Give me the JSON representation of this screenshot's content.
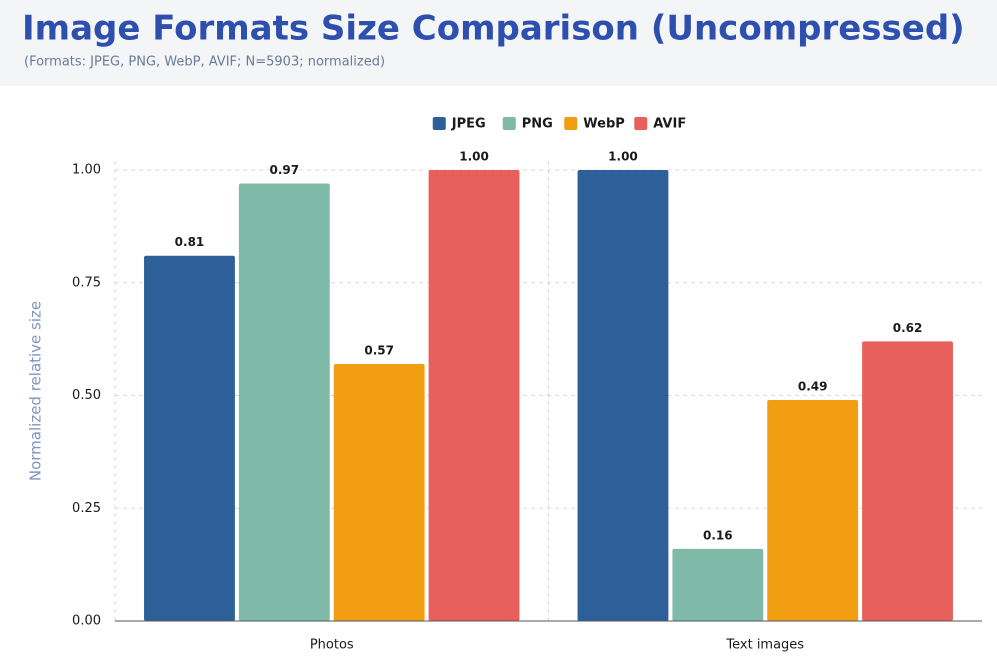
{
  "chart_data": {
    "type": "bar",
    "title": "Image Formats Size Comparison (Uncompressed)",
    "subtitle": "(Formats: JPEG, PNG, WebP, AVIF; N=5903; normalized)",
    "y_label": "Normalized relative size",
    "categories": [
      "Photos",
      "Text images"
    ],
    "series": [
      {
        "name": "JPEG",
        "color": "#2d5f98",
        "values": [
          0.81,
          1.0
        ],
        "value_labels": [
          "0.81",
          "1.00"
        ]
      },
      {
        "name": "PNG",
        "color": "#7fbaa8",
        "values": [
          0.97,
          0.16
        ],
        "value_labels": [
          "0.97",
          "0.16"
        ]
      },
      {
        "name": "WebP",
        "color": "#f29e12",
        "values": [
          0.57,
          0.49
        ],
        "value_labels": [
          "0.57",
          "0.49"
        ]
      },
      {
        "name": "AVIF",
        "color": "#e8605c",
        "values": [
          1.0,
          0.62
        ],
        "value_labels": [
          "1.00",
          "0.62"
        ]
      }
    ],
    "ylim": [
      0,
      1.02
    ],
    "yticks": [
      {
        "value": 0,
        "label": "0.00"
      },
      {
        "value": 0.25,
        "label": "0.25"
      },
      {
        "value": 0.5,
        "label": "0.50"
      },
      {
        "value": 0.75,
        "label": "0.75"
      },
      {
        "value": 1,
        "label": "1.00"
      }
    ],
    "grid": true,
    "legend": "top"
  }
}
